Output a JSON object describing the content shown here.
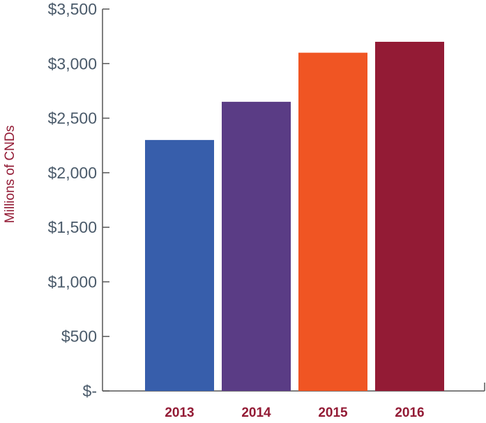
{
  "chart_data": {
    "type": "bar",
    "title": "",
    "xlabel": "",
    "ylabel": "Millions of CNDs",
    "categories": [
      "2013",
      "2014",
      "2015",
      "2016"
    ],
    "values": [
      2300,
      2650,
      3100,
      3200
    ],
    "bar_colors": [
      "#375eab",
      "#5a3c85",
      "#f05523",
      "#931b35"
    ],
    "ylim": [
      0,
      3500
    ],
    "yticks": [
      0,
      500,
      1000,
      1500,
      2000,
      2500,
      3000,
      3500
    ],
    "ytick_labels": [
      "$-",
      "$500",
      "$1,000",
      "$1,500",
      "$2,000",
      "$2,500",
      "$3,000",
      "$3,500"
    ],
    "grid": false,
    "legend": "none",
    "ylabel_color": "#931b35",
    "xtick_color": "#931b35",
    "axis_color": "#555555"
  }
}
